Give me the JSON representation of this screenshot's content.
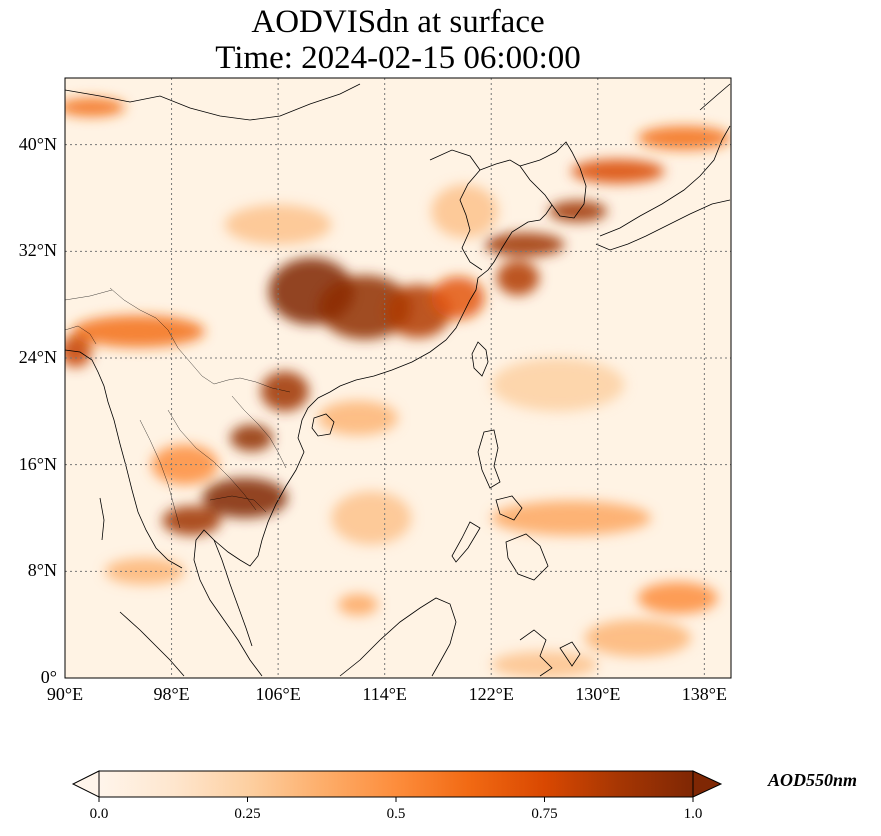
{
  "title": {
    "line1": "AODVISdn at surface",
    "line2": "Time: 2024-02-15 06:00:00"
  },
  "map": {
    "extent": {
      "lon_min": 90,
      "lon_max": 140,
      "lat_min": 0,
      "lat_max": 45
    },
    "lat_ticks": [
      {
        "value": 0,
        "label": "0°"
      },
      {
        "value": 8,
        "label": "8°N"
      },
      {
        "value": 16,
        "label": "16°N"
      },
      {
        "value": 24,
        "label": "24°N"
      },
      {
        "value": 32,
        "label": "32°N"
      },
      {
        "value": 40,
        "label": "40°N"
      }
    ],
    "lon_ticks": [
      {
        "value": 90,
        "label": "90°E"
      },
      {
        "value": 98,
        "label": "98°E"
      },
      {
        "value": 106,
        "label": "106°E"
      },
      {
        "value": 114,
        "label": "114°E"
      },
      {
        "value": 122,
        "label": "122°E"
      },
      {
        "value": 130,
        "label": "130°E"
      },
      {
        "value": 138,
        "label": "138°E"
      }
    ],
    "grid": true,
    "background_color": "#fff3e4",
    "plumes": [
      {
        "lon": 108.5,
        "lat": 29.0,
        "rx": 3.2,
        "ry": 2.5,
        "aod": 1.0
      },
      {
        "lon": 112.5,
        "lat": 27.8,
        "rx": 3.5,
        "ry": 2.4,
        "aod": 0.95
      },
      {
        "lon": 116.5,
        "lat": 27.5,
        "rx": 2.5,
        "ry": 2.0,
        "aod": 0.85
      },
      {
        "lon": 119.5,
        "lat": 28.5,
        "rx": 2.0,
        "ry": 1.6,
        "aod": 0.7
      },
      {
        "lon": 124.0,
        "lat": 30.0,
        "rx": 1.6,
        "ry": 1.3,
        "aod": 0.85
      },
      {
        "lon": 124.5,
        "lat": 32.5,
        "rx": 3.0,
        "ry": 0.9,
        "aod": 0.9
      },
      {
        "lon": 128.5,
        "lat": 35.0,
        "rx": 2.2,
        "ry": 0.8,
        "aod": 0.9
      },
      {
        "lon": 131.5,
        "lat": 38.0,
        "rx": 3.5,
        "ry": 0.9,
        "aod": 0.75
      },
      {
        "lon": 136.5,
        "lat": 40.5,
        "rx": 3.5,
        "ry": 0.9,
        "aod": 0.6
      },
      {
        "lon": 106.5,
        "lat": 21.5,
        "rx": 1.8,
        "ry": 1.5,
        "aod": 0.9
      },
      {
        "lon": 104.0,
        "lat": 18.0,
        "rx": 1.6,
        "ry": 1.0,
        "aod": 0.95
      },
      {
        "lon": 103.5,
        "lat": 13.5,
        "rx": 3.2,
        "ry": 1.5,
        "aod": 1.0
      },
      {
        "lon": 99.5,
        "lat": 11.8,
        "rx": 2.2,
        "ry": 1.1,
        "aod": 0.9
      },
      {
        "lon": 95.5,
        "lat": 26.0,
        "rx": 5.0,
        "ry": 1.2,
        "aod": 0.6
      },
      {
        "lon": 90.8,
        "lat": 24.5,
        "rx": 1.2,
        "ry": 1.2,
        "aod": 0.8
      },
      {
        "lon": 92.0,
        "lat": 42.8,
        "rx": 2.5,
        "ry": 0.7,
        "aod": 0.6
      },
      {
        "lon": 99.0,
        "lat": 16.0,
        "rx": 2.5,
        "ry": 1.5,
        "aod": 0.5
      },
      {
        "lon": 112.0,
        "lat": 19.5,
        "rx": 3.0,
        "ry": 1.3,
        "aod": 0.35
      },
      {
        "lon": 128.0,
        "lat": 12.0,
        "rx": 6.0,
        "ry": 1.3,
        "aod": 0.4
      },
      {
        "lon": 136.0,
        "lat": 6.0,
        "rx": 3.0,
        "ry": 1.2,
        "aod": 0.5
      },
      {
        "lon": 133.0,
        "lat": 3.0,
        "rx": 4.0,
        "ry": 1.4,
        "aod": 0.35
      },
      {
        "lon": 126.0,
        "lat": 1.0,
        "rx": 4.0,
        "ry": 1.0,
        "aod": 0.3
      },
      {
        "lon": 113.0,
        "lat": 12.0,
        "rx": 3.0,
        "ry": 2.0,
        "aod": 0.3
      },
      {
        "lon": 96.0,
        "lat": 8.0,
        "rx": 3.0,
        "ry": 1.0,
        "aod": 0.35
      },
      {
        "lon": 120.0,
        "lat": 35.0,
        "rx": 2.5,
        "ry": 2.0,
        "aod": 0.3
      },
      {
        "lon": 106.0,
        "lat": 34.0,
        "rx": 4.0,
        "ry": 1.5,
        "aod": 0.3
      },
      {
        "lon": 127.0,
        "lat": 22.0,
        "rx": 5.0,
        "ry": 2.0,
        "aod": 0.25
      },
      {
        "lon": 112.0,
        "lat": 5.5,
        "rx": 1.5,
        "ry": 0.8,
        "aod": 0.4
      }
    ]
  },
  "colorbar": {
    "label": "AOD550nm",
    "ticks": [
      {
        "value": 0.0,
        "label": "0.0"
      },
      {
        "value": 0.25,
        "label": "0.25"
      },
      {
        "value": 0.5,
        "label": "0.5"
      },
      {
        "value": 0.75,
        "label": "0.75"
      },
      {
        "value": 1.0,
        "label": "1.0"
      }
    ],
    "range": [
      0,
      1
    ],
    "colormap": [
      "#fff5eb",
      "#fee6ce",
      "#fdd0a2",
      "#fdae6b",
      "#fd8d3c",
      "#f16913",
      "#d94801",
      "#a63603",
      "#7f2704"
    ]
  }
}
